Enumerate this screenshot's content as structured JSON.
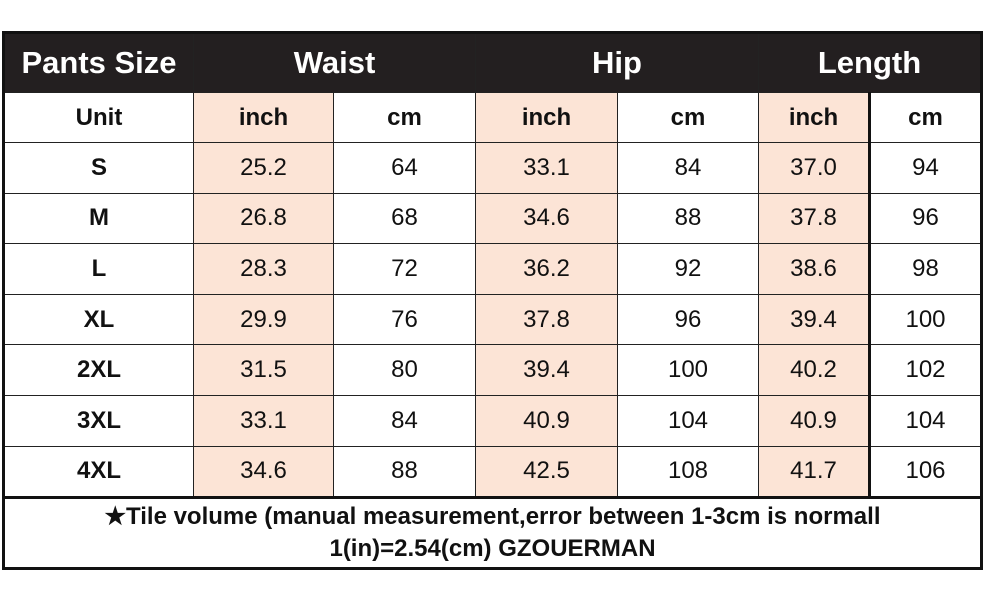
{
  "header": {
    "size": "Pants Size",
    "waist": "Waist",
    "hip": "Hip",
    "length": "Length"
  },
  "units": {
    "label": "Unit",
    "inch": "inch",
    "cm": "cm"
  },
  "rows": [
    {
      "size": "S",
      "waist_in": "25.2",
      "waist_cm": "64",
      "hip_in": "33.1",
      "hip_cm": "84",
      "len_in": "37.0",
      "len_cm": "94"
    },
    {
      "size": "M",
      "waist_in": "26.8",
      "waist_cm": "68",
      "hip_in": "34.6",
      "hip_cm": "88",
      "len_in": "37.8",
      "len_cm": "96"
    },
    {
      "size": "L",
      "waist_in": "28.3",
      "waist_cm": "72",
      "hip_in": "36.2",
      "hip_cm": "92",
      "len_in": "38.6",
      "len_cm": "98"
    },
    {
      "size": "XL",
      "waist_in": "29.9",
      "waist_cm": "76",
      "hip_in": "37.8",
      "hip_cm": "96",
      "len_in": "39.4",
      "len_cm": "100"
    },
    {
      "size": "2XL",
      "waist_in": "31.5",
      "waist_cm": "80",
      "hip_in": "39.4",
      "hip_cm": "100",
      "len_in": "40.2",
      "len_cm": "102"
    },
    {
      "size": "3XL",
      "waist_in": "33.1",
      "waist_cm": "84",
      "hip_in": "40.9",
      "hip_cm": "104",
      "len_in": "40.9",
      "len_cm": "104"
    },
    {
      "size": "4XL",
      "waist_in": "34.6",
      "waist_cm": "88",
      "hip_in": "42.5",
      "hip_cm": "108",
      "len_in": "41.7",
      "len_cm": "106"
    }
  ],
  "footer": {
    "line1": "★Tile volume (manual measurement,error between 1-3cm is normall",
    "line2": "1(in)=2.54(cm) GZOUERMAN"
  },
  "colors": {
    "header_bg": "#231f20",
    "inch_bg": "#fce4d6"
  }
}
